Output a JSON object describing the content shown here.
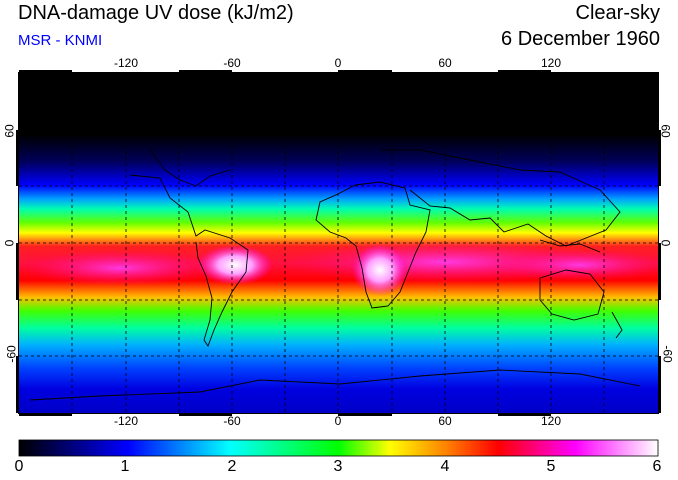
{
  "header": {
    "title": "DNA-damage UV dose (kJ/m2)",
    "subtitle": "MSR - KNMI",
    "product": "Clear-sky",
    "date": "6 December 1960"
  },
  "map": {
    "lon_ticks": [
      "-120",
      "-60",
      "0",
      "60",
      "120"
    ],
    "lat_ticks": [
      "60",
      "0",
      "-60"
    ],
    "lon_range": [
      -180,
      180
    ],
    "lat_range": [
      -90,
      90
    ],
    "grid_lines": "dashed, every 30 degrees"
  },
  "colorbar": {
    "labels": [
      "0",
      "1",
      "2",
      "3",
      "4",
      "5",
      "6"
    ],
    "colors": [
      "#000000",
      "#0000ff",
      "#00ffff",
      "#00ff00",
      "#ffff00",
      "#ff0000",
      "#ff00ff",
      "#ffffff"
    ]
  }
}
